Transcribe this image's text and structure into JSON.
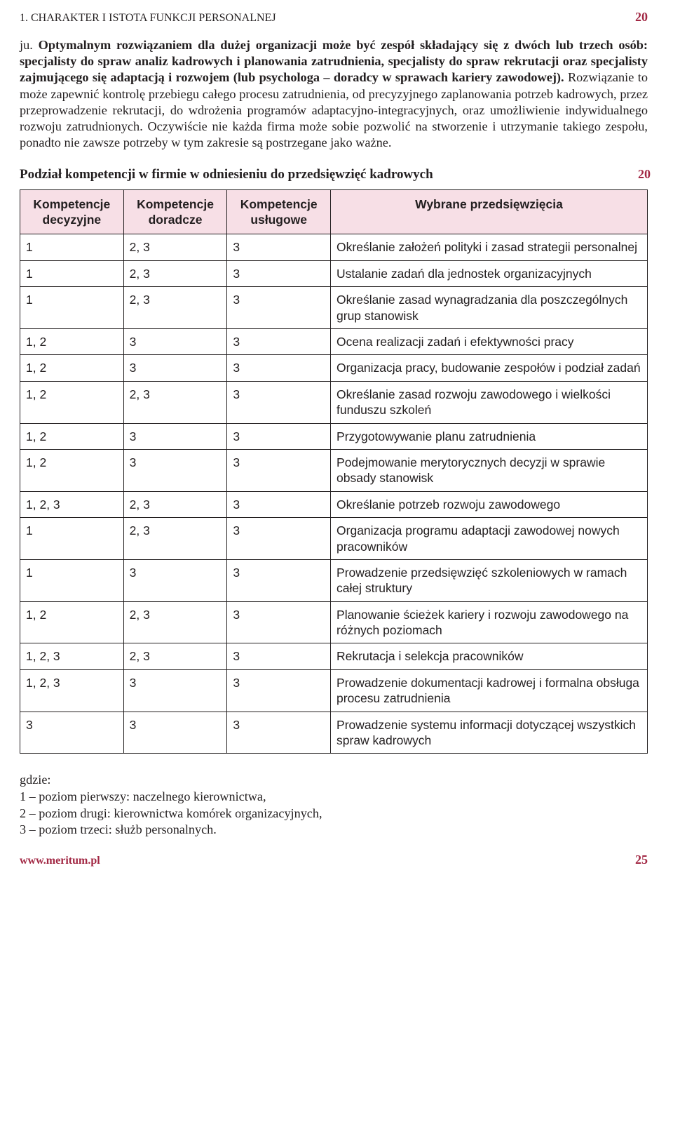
{
  "header": {
    "title": "1. CHARAKTER I ISTOTA FUNKCJI PERSONALNEJ",
    "num": "20"
  },
  "body": {
    "frag": "ju. ",
    "bold": "Optymalnym rozwiązaniem dla dużej organizacji może być zespół składający się z dwóch lub trzech osób: specjalisty do spraw analiz kadrowych i planowania zatrudnienia, specjalisty do spraw rekrutacji oraz specjalisty zajmującego się adaptacją i rozwojem (lub psychologa – doradcy w sprawach kariery zawodowej).",
    "rest": " Rozwiązanie to może zapewnić kontrolę przebiegu całego procesu zatrudnienia, od precyzyjnego zaplanowania potrzeb kadrowych, przez przeprowadzenie rekrutacji, do wdrożenia programów adaptacyjno-integracyjnych, oraz umożliwienie indywidualnego rozwoju zatrudnionych. Oczywiście nie każda firma może sobie pozwolić na stworzenie i utrzymanie takiego zespołu, ponadto nie zawsze potrzeby w tym zakresie są postrzegane jako ważne."
  },
  "subhead": "Podział kompetencji w firmie w odniesieniu do przedsięwzięć kadrowych",
  "sidenum": "20",
  "table": {
    "columns": [
      "Kompetencje decyzyjne",
      "Kompetencje doradcze",
      "Kompetencje usługowe",
      "Wybrane przedsięwzięcia"
    ],
    "rows": [
      [
        "1",
        "2, 3",
        "3",
        "Określanie założeń polityki i zasad strategii personalnej"
      ],
      [
        "1",
        "2, 3",
        "3",
        "Ustalanie zadań dla jednostek organizacyjnych"
      ],
      [
        "1",
        "2, 3",
        "3",
        "Określanie zasad wynagradzania dla poszczególnych grup stanowisk"
      ],
      [
        "1, 2",
        "3",
        "3",
        "Ocena realizacji zadań i efektywności pracy"
      ],
      [
        "1, 2",
        "3",
        "3",
        "Organizacja pracy, budowanie zespołów i podział zadań"
      ],
      [
        "1, 2",
        "2, 3",
        "3",
        "Określanie zasad rozwoju zawodowego i wielkości funduszu szkoleń"
      ],
      [
        "1, 2",
        "3",
        "3",
        "Przygotowywanie planu zatrudnienia"
      ],
      [
        "1, 2",
        "3",
        "3",
        "Podejmowanie merytorycznych decyzji w sprawie obsady stanowisk"
      ],
      [
        "1, 2, 3",
        "2, 3",
        "3",
        "Określanie potrzeb rozwoju zawodowego"
      ],
      [
        "1",
        "2, 3",
        "3",
        "Organizacja programu adaptacji zawodowej nowych pracowników"
      ],
      [
        "1",
        "3",
        "3",
        "Prowadzenie przedsięwzięć szkoleniowych w ramach całej struktury"
      ],
      [
        "1, 2",
        "2, 3",
        "3",
        "Planowanie ścieżek kariery i rozwoju zawodowego na różnych poziomach"
      ],
      [
        "1, 2, 3",
        "2, 3",
        "3",
        "Rekrutacja i selekcja pracowników"
      ],
      [
        "1, 2, 3",
        "3",
        "3",
        "Prowadzenie dokumentacji kadrowej i formalna obsługa procesu zatrudnienia"
      ],
      [
        "3",
        "3",
        "3",
        "Prowadzenie systemu informacji dotyczącej wszystkich spraw kadrowych"
      ]
    ]
  },
  "legend": {
    "intro": "gdzie:",
    "l1": "1 – poziom pierwszy: naczelnego kierownictwa,",
    "l2": "2 – poziom drugi: kierownictwa komórek organizacyjnych,",
    "l3": "3 – poziom trzeci: służb personalnych."
  },
  "footer": {
    "url": "www.meritum.pl",
    "page": "25"
  }
}
